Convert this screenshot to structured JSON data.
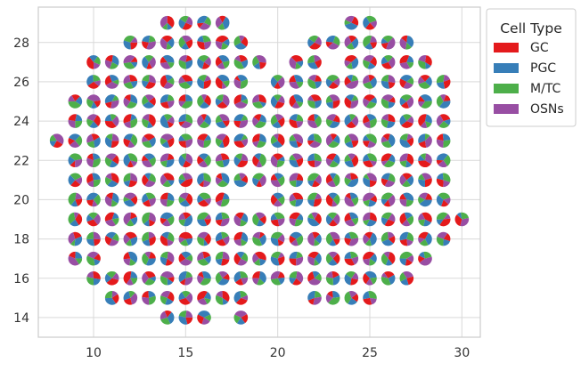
{
  "chart_data": {
    "type": "scatter",
    "marker": "pie",
    "title": "",
    "xlabel": "",
    "ylabel": "",
    "xlim": [
      7.0,
      31.0
    ],
    "ylim": [
      13.0,
      29.8
    ],
    "xticks": [
      10,
      15,
      20,
      25,
      30
    ],
    "yticks": [
      14,
      16,
      18,
      20,
      22,
      24,
      26,
      28
    ],
    "grid": true,
    "legend": {
      "title": "Cell Type",
      "placement": "outside-upper-right",
      "entries": [
        {
          "name": "GC",
          "color": "#e41a1c"
        },
        {
          "name": "PGC",
          "color": "#377eb8"
        },
        {
          "name": "M/TC",
          "color": "#4daf4a"
        },
        {
          "name": "OSNs",
          "color": "#984ea3"
        }
      ]
    },
    "rows": [
      {
        "y": 29,
        "x_ranges": [
          [
            14,
            17
          ]
        ]
      },
      {
        "y": 28,
        "x_ranges": [
          [
            12,
            18
          ]
        ]
      },
      {
        "y": 27,
        "x_ranges": [
          [
            10,
            11
          ],
          [
            12,
            19
          ]
        ]
      },
      {
        "y": 26,
        "x_ranges": [
          [
            10,
            11
          ],
          [
            12,
            18
          ]
        ]
      },
      {
        "y": 25,
        "x_ranges": [
          [
            9,
            11
          ],
          [
            12,
            19
          ]
        ]
      },
      {
        "y": 24,
        "x_ranges": [
          [
            9,
            11
          ],
          [
            12,
            19
          ]
        ]
      },
      {
        "y": 23,
        "x_ranges": [
          [
            8,
            8
          ],
          [
            9,
            11
          ],
          [
            12,
            19
          ]
        ]
      },
      {
        "y": 22,
        "x_ranges": [
          [
            9,
            11
          ],
          [
            12,
            19
          ]
        ]
      },
      {
        "y": 21,
        "x_ranges": [
          [
            9,
            11
          ],
          [
            12,
            19
          ]
        ]
      },
      {
        "y": 20,
        "x_ranges": [
          [
            9,
            11
          ],
          [
            12,
            17
          ]
        ]
      },
      {
        "y": 19,
        "x_ranges": [
          [
            9,
            11
          ],
          [
            12,
            19
          ]
        ]
      },
      {
        "y": 18,
        "x_ranges": [
          [
            9,
            11
          ],
          [
            12,
            19
          ]
        ]
      },
      {
        "y": 17,
        "x_ranges": [
          [
            9,
            10
          ],
          [
            12,
            19
          ]
        ]
      },
      {
        "y": 16,
        "x_ranges": [
          [
            10,
            10
          ],
          [
            11,
            19
          ]
        ]
      },
      {
        "y": 15,
        "x_ranges": [
          [
            11,
            11
          ],
          [
            12,
            18
          ]
        ]
      },
      {
        "y": 14,
        "x_ranges": [
          [
            14,
            16
          ],
          [
            18,
            18
          ]
        ]
      }
    ],
    "rows_right": [
      {
        "y": 29,
        "x_ranges": [
          [
            24,
            25
          ]
        ]
      },
      {
        "y": 28,
        "x_ranges": [
          [
            22,
            22
          ],
          [
            23,
            27
          ]
        ]
      },
      {
        "y": 27,
        "x_ranges": [
          [
            21,
            22
          ],
          [
            24,
            28
          ]
        ]
      },
      {
        "y": 26,
        "x_ranges": [
          [
            20,
            22
          ],
          [
            23,
            29
          ]
        ]
      },
      {
        "y": 25,
        "x_ranges": [
          [
            20,
            29
          ]
        ]
      },
      {
        "y": 24,
        "x_ranges": [
          [
            20,
            29
          ]
        ]
      },
      {
        "y": 23,
        "x_ranges": [
          [
            20,
            29
          ]
        ]
      },
      {
        "y": 22,
        "x_ranges": [
          [
            20,
            29
          ]
        ]
      },
      {
        "y": 21,
        "x_ranges": [
          [
            20,
            29
          ]
        ]
      },
      {
        "y": 20,
        "x_ranges": [
          [
            20,
            29
          ]
        ]
      },
      {
        "y": 19,
        "x_ranges": [
          [
            20,
            30
          ]
        ]
      },
      {
        "y": 18,
        "x_ranges": [
          [
            20,
            29
          ]
        ]
      },
      {
        "y": 17,
        "x_ranges": [
          [
            20,
            28
          ]
        ]
      },
      {
        "y": 16,
        "x_ranges": [
          [
            20,
            22
          ],
          [
            23,
            27
          ]
        ]
      },
      {
        "y": 15,
        "x_ranges": [
          [
            22,
            22
          ],
          [
            23,
            25
          ]
        ]
      }
    ]
  }
}
